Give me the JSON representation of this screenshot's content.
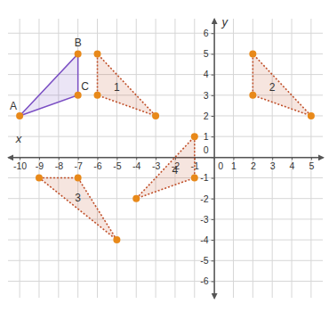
{
  "chart_data": {
    "type": "polygon",
    "x_label": "x",
    "y_label": "y",
    "xlim": [
      -10.6,
      5.6
    ],
    "ylim": [
      -6.8,
      6.7
    ],
    "xticks": [
      -10,
      -9,
      -8,
      -7,
      -6,
      -5,
      -4,
      -3,
      -2,
      -1,
      0,
      1,
      2,
      3,
      4,
      5
    ],
    "yticks": [
      -6,
      -5,
      -4,
      -3,
      -2,
      -1,
      0,
      1,
      2,
      3,
      4,
      5,
      6
    ],
    "grid": true,
    "marker": "circle",
    "shapes": [
      {
        "x": [
          -10,
          -7,
          -7
        ],
        "y": [
          2,
          5,
          3
        ],
        "vertex_labels": [
          "A",
          "B",
          "C"
        ],
        "color": "#7b4fc4",
        "line_style": "solid"
      },
      {
        "x": [
          -6,
          -6,
          -3
        ],
        "y": [
          5,
          3,
          2
        ],
        "label": "1",
        "color": "#c0502a",
        "line_style": "dotted"
      },
      {
        "x": [
          2,
          2,
          5
        ],
        "y": [
          5,
          3,
          2
        ],
        "label": "2",
        "color": "#c0502a",
        "line_style": "dotted"
      },
      {
        "x": [
          -9,
          -7,
          -5
        ],
        "y": [
          -1,
          -1,
          -4
        ],
        "label": "3",
        "color": "#c0502a",
        "line_style": "dotted"
      },
      {
        "x": [
          -1,
          -1,
          -4
        ],
        "y": [
          1,
          -1,
          -2
        ],
        "label": "4",
        "color": "#c0502a",
        "line_style": "dotted"
      }
    ]
  }
}
